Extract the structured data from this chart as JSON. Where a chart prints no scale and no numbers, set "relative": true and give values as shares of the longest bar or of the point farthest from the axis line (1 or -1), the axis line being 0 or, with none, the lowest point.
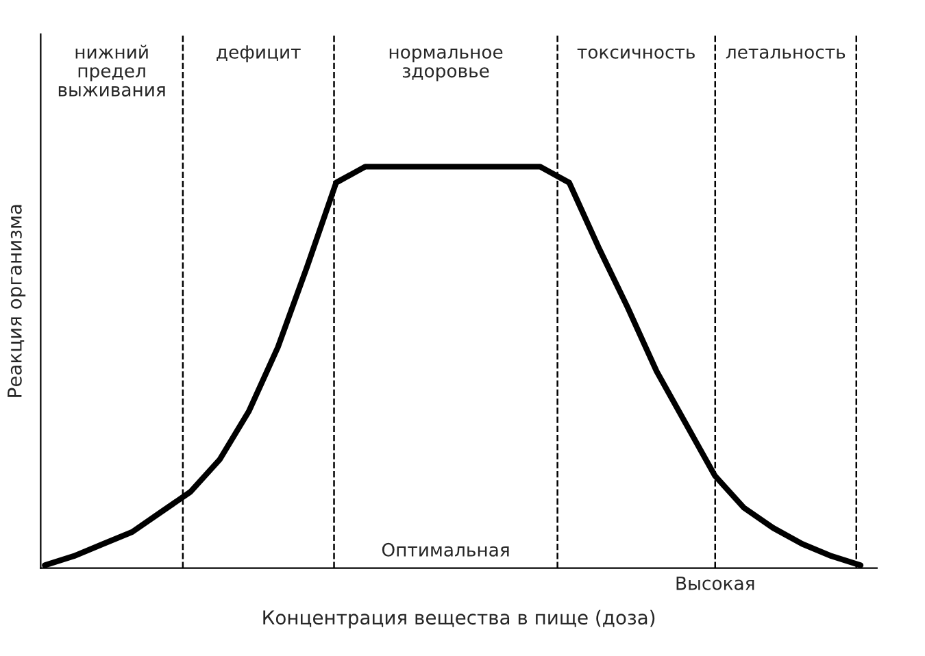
{
  "chart_data": {
    "type": "line",
    "relative": true,
    "xlabel": "Концентрация вещества в пище (доза)",
    "ylabel": "Реакция организма",
    "categories": [
      null,
      null,
      null,
      null,
      null,
      null,
      null,
      null,
      null,
      null,
      null,
      null,
      null,
      null,
      null,
      null,
      null,
      null,
      null,
      null,
      null,
      null,
      null,
      null,
      null,
      null,
      null,
      null,
      null
    ],
    "series": [
      {
        "color": "#000000",
        "values": [
          0.007,
          0.03,
          0.06,
          0.09,
          0.14,
          0.19,
          0.27,
          0.39,
          0.55,
          0.75,
          0.96,
          1,
          1,
          1,
          1,
          1,
          1,
          1,
          0.96,
          0.8,
          0.65,
          0.49,
          0.36,
          0.23,
          0.15,
          0.1,
          0.06,
          0.03,
          0.007
        ]
      }
    ],
    "annotations": [
      "нижний\nпредел\nвыживания",
      "дефицит",
      "нормальное\nздоровье",
      "токсичность",
      "летальность",
      "Оптимальная",
      "Высокая"
    ],
    "legend": false,
    "marker": "none",
    "line_style": "solid"
  }
}
